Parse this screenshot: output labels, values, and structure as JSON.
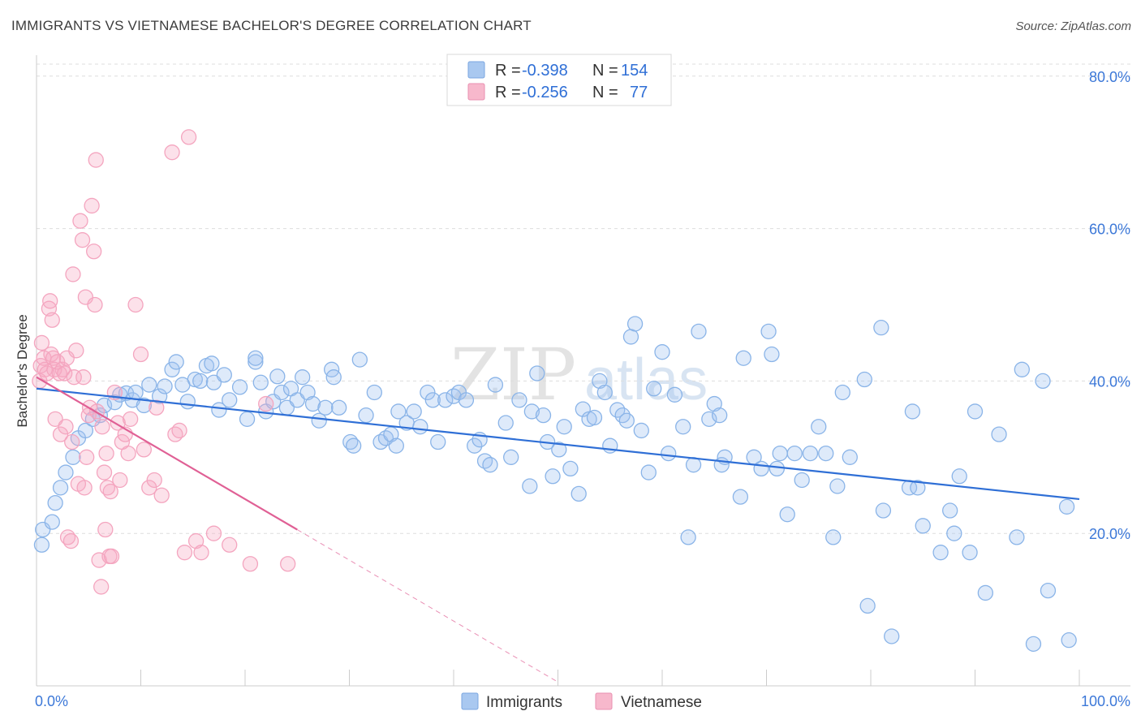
{
  "title": "IMMIGRANTS VS VIETNAMESE BACHELOR'S DEGREE CORRELATION CHART",
  "source": "Source: ZipAtlas.com",
  "watermark": {
    "zip": "ZIP",
    "atlas": "atlas"
  },
  "chart_data": {
    "type": "scatter",
    "xlabel": "",
    "ylabel": "Bachelor's Degree",
    "xlim": [
      0,
      100
    ],
    "ylim": [
      0,
      82
    ],
    "x_tick_labels": [
      "0.0%",
      "100.0%"
    ],
    "y_ticks": [
      20,
      40,
      60,
      80
    ],
    "y_tick_labels": [
      "20.0%",
      "40.0%",
      "60.0%",
      "80.0%"
    ],
    "legend": {
      "rows": [
        {
          "r_label": "R =",
          "r_value": "-0.398",
          "n_label": "N =",
          "n_value": "154",
          "color": "#a9c8f0"
        },
        {
          "r_label": "R =",
          "r_value": "-0.256",
          "n_label": "N =",
          "n_value": "77",
          "color": "#f7b8cc"
        }
      ]
    },
    "series": [
      {
        "name": "Immigrants",
        "color": "#8ab4e8",
        "line_color": "#2f6fd6",
        "trend": {
          "x0": 0,
          "y0": 39.0,
          "x1": 100,
          "y1": 24.5
        },
        "points": [
          [
            0.5,
            18.5
          ],
          [
            0.6,
            20.5
          ],
          [
            1.5,
            21.5
          ],
          [
            1.8,
            24
          ],
          [
            2.3,
            26
          ],
          [
            2.8,
            28
          ],
          [
            3.5,
            30
          ],
          [
            4,
            32.5
          ],
          [
            4.7,
            33.5
          ],
          [
            5.4,
            35
          ],
          [
            6.1,
            35.5
          ],
          [
            6.5,
            36.8
          ],
          [
            7.5,
            37.2
          ],
          [
            8,
            38.2
          ],
          [
            8.6,
            38.4
          ],
          [
            9.2,
            37.5
          ],
          [
            9.5,
            38.5
          ],
          [
            10.3,
            36.8
          ],
          [
            10.8,
            39.5
          ],
          [
            11.8,
            38
          ],
          [
            12.3,
            39.3
          ],
          [
            13,
            41.5
          ],
          [
            13.4,
            42.5
          ],
          [
            14,
            39.5
          ],
          [
            14.5,
            37.3
          ],
          [
            15.2,
            40.2
          ],
          [
            15.7,
            40
          ],
          [
            16.3,
            42
          ],
          [
            16.8,
            42.3
          ],
          [
            17,
            39.8
          ],
          [
            17.5,
            36.2
          ],
          [
            18,
            40.8
          ],
          [
            18.5,
            37.5
          ],
          [
            19.5,
            39.2
          ],
          [
            20.2,
            35
          ],
          [
            21,
            42.5
          ],
          [
            21,
            43
          ],
          [
            21.5,
            39.8
          ],
          [
            22,
            36
          ],
          [
            22.7,
            37.3
          ],
          [
            23.1,
            40.6
          ],
          [
            23.5,
            38.5
          ],
          [
            24,
            36.5
          ],
          [
            24.4,
            39
          ],
          [
            25,
            37.5
          ],
          [
            25.5,
            40.5
          ],
          [
            26,
            38.5
          ],
          [
            26.5,
            37
          ],
          [
            27.1,
            34.8
          ],
          [
            27.7,
            36.5
          ],
          [
            28.3,
            41.5
          ],
          [
            28.5,
            40.5
          ],
          [
            29,
            36.5
          ],
          [
            30.1,
            32
          ],
          [
            30.4,
            31.5
          ],
          [
            31,
            42.8
          ],
          [
            31.6,
            35.5
          ],
          [
            32.4,
            38.5
          ],
          [
            33,
            32
          ],
          [
            33.5,
            32.5
          ],
          [
            34,
            33
          ],
          [
            34.5,
            31.5
          ],
          [
            34.7,
            36
          ],
          [
            35.5,
            34.5
          ],
          [
            36.2,
            36
          ],
          [
            36.8,
            34
          ],
          [
            37.5,
            38.5
          ],
          [
            38,
            37.5
          ],
          [
            38.5,
            32
          ],
          [
            39.2,
            37.5
          ],
          [
            40,
            38
          ],
          [
            40.5,
            38.5
          ],
          [
            41.2,
            37.5
          ],
          [
            42,
            31.5
          ],
          [
            42.5,
            32.3
          ],
          [
            43,
            29.5
          ],
          [
            43.5,
            29
          ],
          [
            44,
            39.5
          ],
          [
            45,
            34.5
          ],
          [
            45.5,
            30
          ],
          [
            46.3,
            37.5
          ],
          [
            47.3,
            26.2
          ],
          [
            47.5,
            36
          ],
          [
            48,
            41
          ],
          [
            48.6,
            35.5
          ],
          [
            49,
            32
          ],
          [
            49.5,
            27.5
          ],
          [
            50.1,
            31
          ],
          [
            50.6,
            34
          ],
          [
            51.2,
            28.5
          ],
          [
            52,
            25.2
          ],
          [
            52.4,
            36.3
          ],
          [
            53,
            35
          ],
          [
            53.5,
            35.2
          ],
          [
            54,
            40
          ],
          [
            54.5,
            38.5
          ],
          [
            55,
            31.5
          ],
          [
            55.7,
            36.2
          ],
          [
            56.2,
            35.5
          ],
          [
            56.6,
            34.8
          ],
          [
            57,
            45.8
          ],
          [
            57.4,
            47.5
          ],
          [
            58,
            33.5
          ],
          [
            58.7,
            28
          ],
          [
            59.2,
            39
          ],
          [
            60,
            43.8
          ],
          [
            60.6,
            30.5
          ],
          [
            61.2,
            38.2
          ],
          [
            62,
            34
          ],
          [
            62.5,
            19.5
          ],
          [
            63,
            29
          ],
          [
            63.5,
            46.5
          ],
          [
            64.5,
            35
          ],
          [
            65,
            37
          ],
          [
            65.5,
            35.5
          ],
          [
            65.7,
            29
          ],
          [
            66,
            30
          ],
          [
            67.5,
            24.8
          ],
          [
            67.8,
            43
          ],
          [
            68.8,
            30
          ],
          [
            69.5,
            28.5
          ],
          [
            70.2,
            46.5
          ],
          [
            70.5,
            43.5
          ],
          [
            71,
            28.5
          ],
          [
            71.3,
            30.5
          ],
          [
            72,
            22.5
          ],
          [
            72.7,
            30.5
          ],
          [
            73.4,
            27
          ],
          [
            74.2,
            30.5
          ],
          [
            75,
            34
          ],
          [
            75.7,
            30.5
          ],
          [
            76.4,
            19.5
          ],
          [
            76.8,
            26.2
          ],
          [
            77.3,
            38.5
          ],
          [
            78,
            30
          ],
          [
            79.4,
            40.2
          ],
          [
            79.7,
            10.5
          ],
          [
            81,
            47
          ],
          [
            81.2,
            23
          ],
          [
            82,
            6.5
          ],
          [
            83.7,
            26
          ],
          [
            84,
            36
          ],
          [
            84.5,
            26
          ],
          [
            85,
            21
          ],
          [
            86.7,
            17.5
          ],
          [
            87.6,
            23
          ],
          [
            88,
            20
          ],
          [
            88.5,
            27.5
          ],
          [
            89.5,
            17.5
          ],
          [
            90,
            36
          ],
          [
            91,
            12.2
          ],
          [
            92.3,
            33
          ],
          [
            94,
            19.5
          ],
          [
            94.5,
            41.5
          ],
          [
            95.6,
            5.5
          ],
          [
            96.5,
            40
          ],
          [
            97,
            12.5
          ],
          [
            98.8,
            23.5
          ],
          [
            99,
            6
          ]
        ]
      },
      {
        "name": "Vietnamese",
        "color": "#f4a5bf",
        "line_color": "#e06095",
        "trend": {
          "x0": 0,
          "y0": 40.5,
          "x1": 25,
          "y1": 20.5
        },
        "trend_ext": {
          "x0": 25,
          "y0": 20.5,
          "x1": 50,
          "y1": 0.5
        },
        "points": [
          [
            0.3,
            40
          ],
          [
            0.4,
            42
          ],
          [
            0.5,
            45
          ],
          [
            0.7,
            43
          ],
          [
            0.8,
            41.5
          ],
          [
            1,
            41
          ],
          [
            1.2,
            49.5
          ],
          [
            1.3,
            50.5
          ],
          [
            1.4,
            43.5
          ],
          [
            1.5,
            48
          ],
          [
            1.6,
            43
          ],
          [
            1.7,
            41.5
          ],
          [
            1.8,
            35
          ],
          [
            2,
            42.5
          ],
          [
            2.2,
            41
          ],
          [
            2.3,
            33
          ],
          [
            2.5,
            41.5
          ],
          [
            2.7,
            41
          ],
          [
            2.8,
            34
          ],
          [
            2.9,
            43
          ],
          [
            3,
            19.5
          ],
          [
            3.3,
            19
          ],
          [
            3.4,
            32
          ],
          [
            3.5,
            54
          ],
          [
            3.6,
            40.5
          ],
          [
            3.8,
            44
          ],
          [
            4,
            26.5
          ],
          [
            4.2,
            61
          ],
          [
            4.4,
            58.5
          ],
          [
            4.5,
            40.5
          ],
          [
            4.6,
            26
          ],
          [
            4.7,
            51
          ],
          [
            4.8,
            30
          ],
          [
            5,
            35.5
          ],
          [
            5.1,
            36.5
          ],
          [
            5.3,
            63
          ],
          [
            5.5,
            57
          ],
          [
            5.6,
            50
          ],
          [
            5.7,
            69
          ],
          [
            5.8,
            36
          ],
          [
            6,
            16.5
          ],
          [
            6.2,
            13
          ],
          [
            6.3,
            34
          ],
          [
            6.5,
            28
          ],
          [
            6.6,
            20.5
          ],
          [
            6.7,
            30.5
          ],
          [
            6.8,
            26
          ],
          [
            7,
            17
          ],
          [
            7.1,
            25.5
          ],
          [
            7.2,
            17
          ],
          [
            7.5,
            38.5
          ],
          [
            7.8,
            34.5
          ],
          [
            8,
            27
          ],
          [
            8.2,
            32
          ],
          [
            8.5,
            33
          ],
          [
            8.8,
            30.5
          ],
          [
            9,
            35
          ],
          [
            9.5,
            50
          ],
          [
            10,
            43.5
          ],
          [
            10.3,
            31
          ],
          [
            10.8,
            26
          ],
          [
            11.3,
            27
          ],
          [
            11.5,
            36.5
          ],
          [
            12,
            25
          ],
          [
            13,
            70
          ],
          [
            13.3,
            33
          ],
          [
            13.7,
            33.5
          ],
          [
            14.2,
            17.5
          ],
          [
            14.6,
            72
          ],
          [
            15.3,
            19
          ],
          [
            15.8,
            17.5
          ],
          [
            17,
            20
          ],
          [
            18.5,
            18.5
          ],
          [
            20.5,
            16
          ],
          [
            22,
            37
          ],
          [
            24.1,
            16
          ]
        ]
      }
    ]
  },
  "bottom_legend": [
    {
      "label": "Immigrants",
      "color": "#a9c8f0"
    },
    {
      "label": "Vietnamese",
      "color": "#f7b8cc"
    }
  ]
}
